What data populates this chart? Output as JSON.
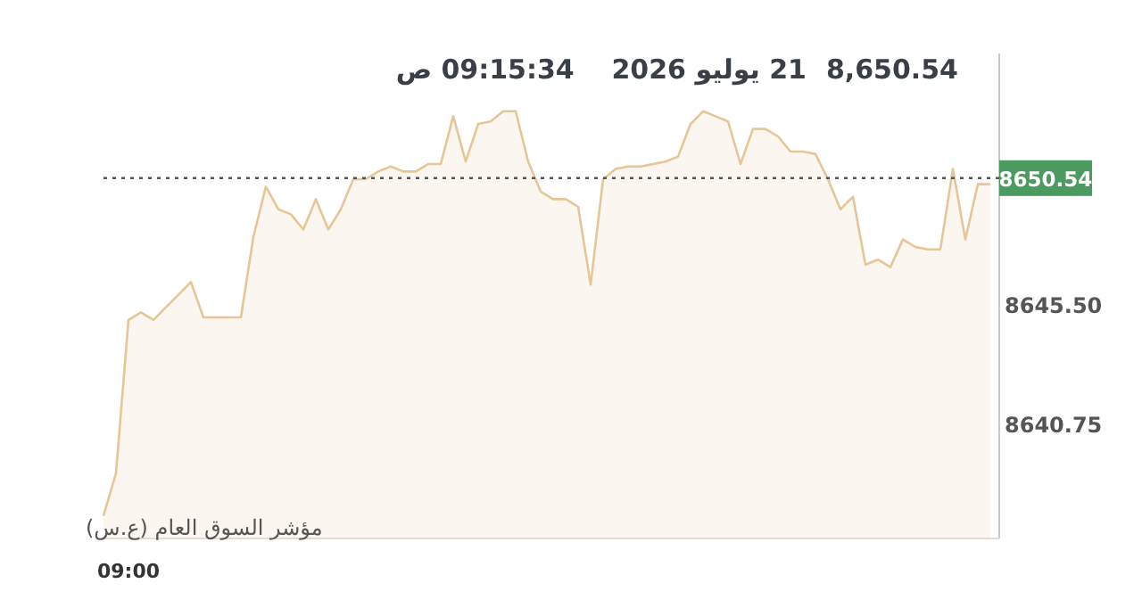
{
  "chart_data": {
    "type": "area",
    "title": "8,650.54",
    "subtitle": "21 يوليو 2026    09:15:34 ص",
    "categories": [
      null,
      null,
      "09:00",
      null,
      null,
      null,
      null,
      null,
      null,
      null,
      null,
      null,
      null,
      null,
      null,
      null,
      null,
      null,
      null,
      null,
      null,
      null,
      null,
      null,
      null,
      null,
      null,
      null,
      null,
      null,
      null,
      null,
      null,
      null,
      null,
      null,
      null,
      null,
      null,
      null,
      null,
      null,
      null,
      null,
      null,
      null,
      null,
      null,
      null,
      null,
      null,
      null,
      null,
      null,
      null,
      null,
      null,
      null,
      null,
      null,
      null,
      null,
      null,
      null,
      null,
      null,
      null,
      null,
      null,
      null,
      null,
      null
    ],
    "series": [
      {
        "color": "#e6c697",
        "values": [
          8637.1,
          8638.8,
          8644.9,
          8645.2,
          8644.9,
          8645.4,
          8645.9,
          8646.4,
          8645.0,
          8645.0,
          8645.0,
          8645.0,
          8648.2,
          8650.2,
          8649.3,
          8649.1,
          8648.5,
          8649.7,
          8648.5,
          8649.3,
          8650.5,
          8650.5,
          8650.8,
          8651.0,
          8650.8,
          8650.8,
          8651.1,
          8651.1,
          8653.0,
          8651.2,
          8652.7,
          8652.8,
          8653.2,
          8653.2,
          8651.2,
          8650.0,
          8649.7,
          8649.7,
          8649.4,
          8646.3,
          8650.5,
          8650.9,
          8651.0,
          8651.0,
          8651.1,
          8651.2,
          8651.4,
          8652.7,
          8653.2,
          8653.0,
          8652.8,
          8651.1,
          8652.5,
          8652.5,
          8652.2,
          8651.6,
          8651.6,
          8651.5,
          8650.5,
          8649.3,
          8649.8,
          8647.1,
          8647.3,
          8647.0,
          8648.1,
          8647.8,
          8647.7,
          8647.7,
          8650.9,
          8648.1,
          8650.3,
          8650.3
        ]
      }
    ],
    "ylim": [
      8636.2,
      8655.5
    ],
    "yticks": [
      {
        "value": 8640.75,
        "label": "8640.75"
      },
      {
        "value": 8645.5,
        "label": "8645.50"
      }
    ],
    "ref_lines": [
      {
        "axis": "y",
        "value": 8650.54,
        "label": "8650.54",
        "color": "#555555",
        "line_style": "dotted"
      }
    ],
    "annotations": [
      "مؤشر السوق العام (ع.س)"
    ]
  }
}
